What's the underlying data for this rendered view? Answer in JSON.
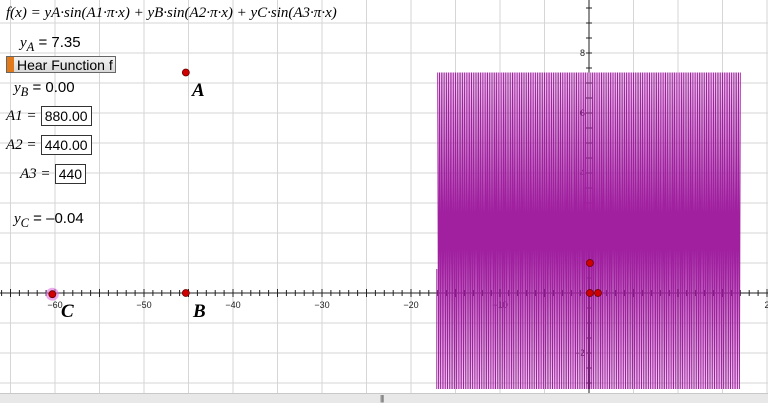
{
  "formula": {
    "text": "f(x) = yA·sin(A1·π·x) + yB·sin(A2·π·x) + yC·sin(A3·π·x)"
  },
  "sliders": {
    "yA": {
      "label": "y",
      "sub": "A",
      "value": "7.35"
    },
    "yB": {
      "label": "y",
      "sub": "B",
      "value": "0.00"
    },
    "yC": {
      "label": "y",
      "sub": "C",
      "value": "–0.04"
    }
  },
  "inputs": {
    "A1": {
      "label": "A1 =",
      "value": "880.00"
    },
    "A2": {
      "label": "A2 =",
      "value": "440.00"
    },
    "A3": {
      "label": "A3 =",
      "value": "440"
    }
  },
  "hear_button": {
    "label": "Hear Function f"
  },
  "points": {
    "A": "A",
    "B": "B",
    "C": "C"
  },
  "axes": {
    "x_ticks": [
      "-60",
      "-50",
      "-40",
      "-30",
      "-20",
      "-10",
      "2"
    ],
    "y_ticks": [
      "8",
      "6",
      "4",
      "2",
      "-2"
    ]
  },
  "colors": {
    "curve": "#a020a0",
    "point": "#d00000",
    "button_accent": "#e07a1a",
    "grid": "#d6d6d6"
  },
  "scrollbar": {
    "grip": "|||"
  }
}
